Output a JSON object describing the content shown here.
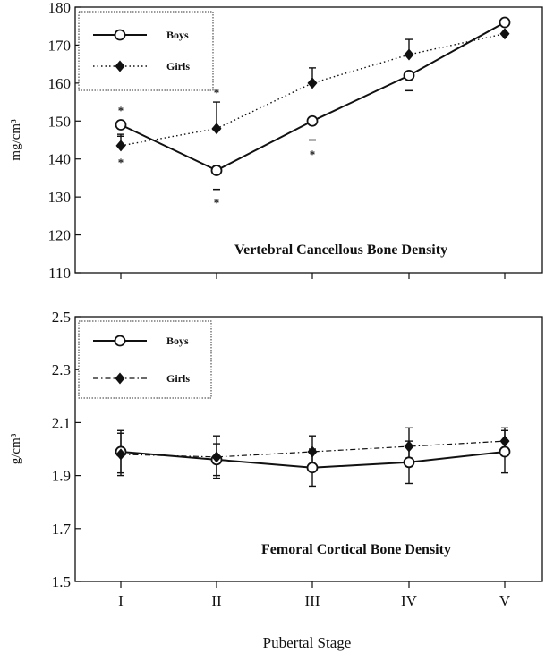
{
  "chart_data": [
    {
      "type": "line",
      "title": "Vertebral Cancellous Bone Density",
      "xlabel": "Pubertal Stage",
      "ylabel": "mg/cm³",
      "ylim": [
        110,
        180
      ],
      "yticks": [
        110,
        120,
        130,
        140,
        150,
        160,
        170,
        180
      ],
      "categories": [
        "I",
        "II",
        "III",
        "IV",
        "V"
      ],
      "legend_position": "top-left",
      "series": [
        {
          "name": "Boys",
          "marker": "open-circle",
          "line": "solid",
          "values": [
            149,
            137,
            150,
            162,
            176
          ],
          "errors": [
            3,
            5,
            5,
            4,
            0
          ]
        },
        {
          "name": "Girls",
          "marker": "filled-diamond",
          "line": "dotted",
          "values": [
            143.5,
            148,
            160,
            167.5,
            173
          ],
          "errors": [
            3,
            7,
            4,
            4,
            0
          ]
        }
      ],
      "annotations": [
        "*",
        "*",
        "*",
        "*",
        "*",
        "*"
      ]
    },
    {
      "type": "line",
      "title": "Femoral Cortical Bone Density",
      "xlabel": "Pubertal Stage",
      "ylabel": "g/cm³",
      "ylim": [
        1.5,
        2.5
      ],
      "yticks": [
        1.5,
        1.7,
        1.9,
        2.1,
        2.3,
        2.5
      ],
      "categories": [
        "I",
        "II",
        "III",
        "IV",
        "V"
      ],
      "legend_position": "top-left",
      "series": [
        {
          "name": "Boys",
          "marker": "open-circle",
          "line": "solid",
          "values": [
            1.99,
            1.96,
            1.93,
            1.95,
            1.99
          ],
          "errors": [
            0.08,
            0.06,
            0.07,
            0.08,
            0.08
          ]
        },
        {
          "name": "Girls",
          "marker": "filled-diamond",
          "line": "dash-dot",
          "values": [
            1.98,
            1.97,
            1.99,
            2.01,
            2.03
          ],
          "errors": [
            0.08,
            0.08,
            0.06,
            0.07,
            0.05
          ]
        }
      ]
    }
  ]
}
